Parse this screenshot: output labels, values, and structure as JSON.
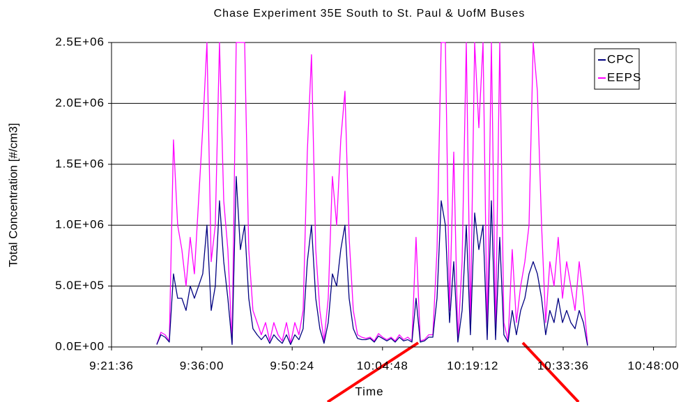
{
  "chart_data": {
    "type": "line",
    "title": "Chase Experiment 35E South to St. Paul & UofM Buses",
    "x_label": "Time",
    "y_label": "Total Concentration [#/cm3]",
    "x": [
      34129,
      34169,
      34209,
      34249,
      34289,
      34329,
      34369,
      34409,
      34449,
      34489,
      34529,
      34569,
      34609,
      34649,
      34689,
      34729,
      34769,
      34809,
      34849,
      34889,
      34929,
      34969,
      35009,
      35049,
      35089,
      35129,
      35169,
      35209,
      35249,
      35289,
      35329,
      35369,
      35409,
      35449,
      35489,
      35529,
      35569,
      35609,
      35649,
      35689,
      35729,
      35769,
      35809,
      35849,
      35889,
      35929,
      35969,
      36009,
      36049,
      36089,
      36129,
      36169,
      36209,
      36249,
      36289,
      36329,
      36369,
      36409,
      36449,
      36489,
      36529,
      36569,
      36609,
      36649,
      36689,
      36729,
      36769,
      36809,
      36849,
      36889,
      36929,
      36969,
      37009,
      37049,
      37089,
      37129,
      37169,
      37209,
      37249,
      37289,
      37329,
      37369,
      37409,
      37449,
      37489,
      37529,
      37569,
      37609,
      37649,
      37689,
      37729,
      37769,
      37809,
      37849,
      37889,
      37929,
      37969,
      38009,
      38049,
      38089,
      38129,
      38169,
      38209,
      38249
    ],
    "series": [
      {
        "name": "EEPS",
        "color": "#ff00ff",
        "values": [
          20000,
          120000,
          100000,
          50000,
          1700000,
          1000000,
          800000,
          500000,
          900000,
          600000,
          1200000,
          1800000,
          2500000,
          700000,
          1000000,
          2500000,
          1200000,
          800000,
          30000,
          2500000,
          2500000,
          2500000,
          800000,
          300000,
          200000,
          100000,
          200000,
          50000,
          200000,
          100000,
          50000,
          200000,
          30000,
          200000,
          100000,
          300000,
          1600000,
          2400000,
          800000,
          300000,
          50000,
          400000,
          1400000,
          1000000,
          1700000,
          2100000,
          900000,
          300000,
          100000,
          80000,
          70000,
          80000,
          50000,
          110000,
          80000,
          60000,
          80000,
          50000,
          100000,
          60000,
          80000,
          50000,
          900000,
          50000,
          60000,
          100000,
          100000,
          800000,
          2500000,
          2500000,
          300000,
          1600000,
          50000,
          700000,
          2500000,
          200000,
          2500000,
          1800000,
          2500000,
          100000,
          2500000,
          100000,
          2500000,
          200000,
          50000,
          800000,
          200000,
          500000,
          700000,
          1000000,
          2500000,
          2100000,
          1000000,
          200000,
          700000,
          500000,
          900000,
          400000,
          700000,
          500000,
          300000,
          700000,
          400000,
          20000
        ]
      },
      {
        "name": "CPC",
        "color": "#000080",
        "values": [
          20000,
          100000,
          80000,
          40000,
          600000,
          400000,
          400000,
          300000,
          500000,
          400000,
          500000,
          600000,
          1000000,
          300000,
          500000,
          1200000,
          700000,
          400000,
          20000,
          1400000,
          800000,
          1000000,
          400000,
          150000,
          100000,
          60000,
          100000,
          30000,
          100000,
          60000,
          30000,
          100000,
          20000,
          100000,
          60000,
          150000,
          700000,
          1000000,
          400000,
          150000,
          30000,
          200000,
          600000,
          500000,
          800000,
          1000000,
          400000,
          150000,
          70000,
          60000,
          60000,
          70000,
          40000,
          90000,
          70000,
          50000,
          70000,
          40000,
          80000,
          50000,
          60000,
          40000,
          400000,
          40000,
          50000,
          80000,
          80000,
          400000,
          1200000,
          1000000,
          200000,
          700000,
          40000,
          300000,
          1000000,
          100000,
          1100000,
          800000,
          1000000,
          60000,
          1200000,
          60000,
          900000,
          100000,
          40000,
          300000,
          100000,
          300000,
          400000,
          600000,
          700000,
          600000,
          400000,
          100000,
          300000,
          200000,
          400000,
          200000,
          300000,
          200000,
          150000,
          300000,
          200000,
          10000
        ]
      }
    ],
    "xlim": [
      33696,
      39096
    ],
    "ylim": [
      0,
      2500000
    ],
    "xticks": [
      {
        "value": 33696,
        "label": "9:21:36"
      },
      {
        "value": 34560,
        "label": "9:36:00"
      },
      {
        "value": 35424,
        "label": "9:50:24"
      },
      {
        "value": 36288,
        "label": "10:04:48"
      },
      {
        "value": 37152,
        "label": "10:19:12"
      },
      {
        "value": 38016,
        "label": "10:33:36"
      },
      {
        "value": 38880,
        "label": "10:48:00"
      }
    ],
    "yticks": [
      {
        "value": 0,
        "label": "0.0E+00"
      },
      {
        "value": 500000,
        "label": "5.0E+05"
      },
      {
        "value": 1000000,
        "label": "1.0E+06"
      },
      {
        "value": 1500000,
        "label": "1.5E+06"
      },
      {
        "value": 2000000,
        "label": "2.0E+06"
      },
      {
        "value": 2500000,
        "label": "2.5E+06"
      }
    ],
    "grid": true,
    "legend": "top-right"
  }
}
